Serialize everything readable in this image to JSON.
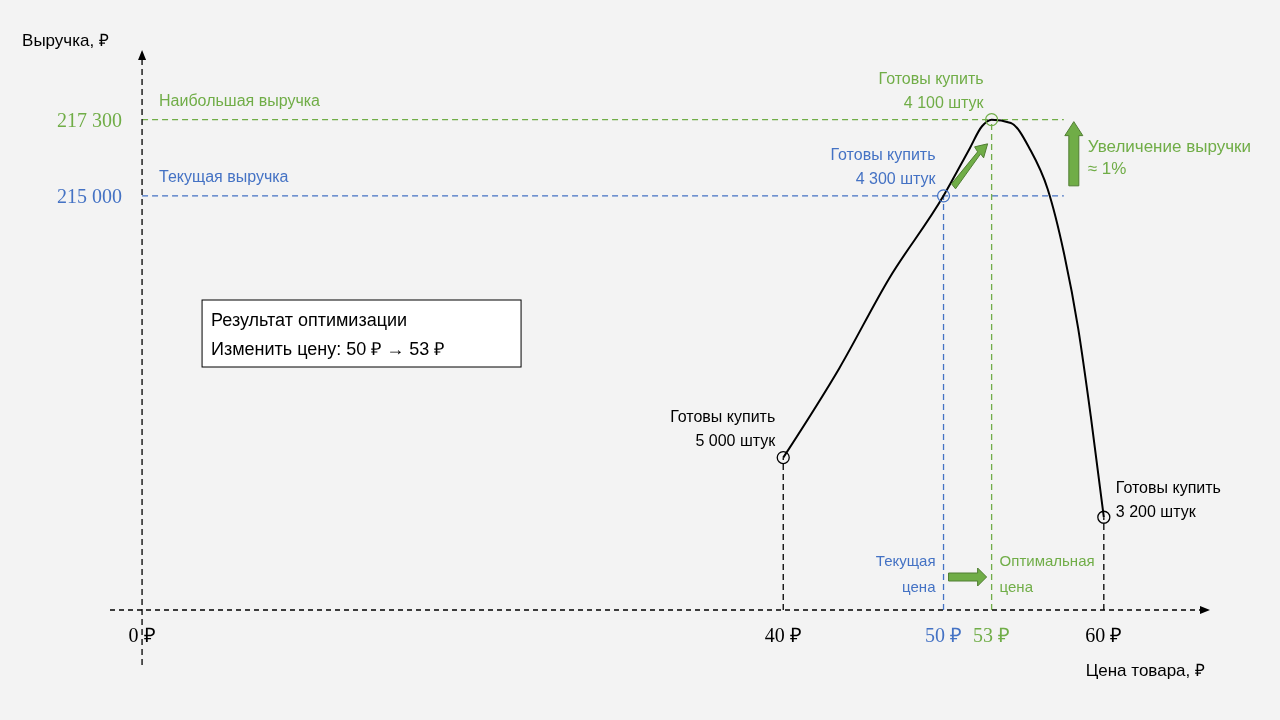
{
  "chart_data": {
    "type": "line",
    "xlabel": "Цена товара, ₽",
    "ylabel": "Выручка, ₽",
    "xlim": [
      -2,
      66
    ],
    "ylim": [
      202500,
      219100
    ],
    "xticks": [
      {
        "value": 0,
        "label": "0 ₽"
      },
      {
        "value": 40,
        "label": "40 ₽"
      },
      {
        "value": 50,
        "label": "50 ₽"
      },
      {
        "value": 53,
        "label": "53 ₽"
      },
      {
        "value": 60,
        "label": "60 ₽"
      }
    ],
    "yticks": [
      {
        "value": 215000,
        "label": "215 000"
      },
      {
        "value": 217300,
        "label": "217 300"
      }
    ],
    "grid": false,
    "legend": false,
    "series": [
      {
        "color": "#000000",
        "marker": "none",
        "line_style": "solid",
        "x": [
          40,
          43.5,
          46.6,
          50,
          51.6,
          52.4,
          53,
          54.2,
          55.4,
          56.5,
          57.5,
          58.4,
          59.2,
          60
        ],
        "values": [
          207100,
          209800,
          212500,
          215000,
          216400,
          217100,
          217300,
          217200,
          216400,
          215200,
          213300,
          211000,
          208300,
          205300
        ]
      },
      {
        "type": "scatter",
        "marker": "circle",
        "colors": [
          "#000000",
          "#4472c4",
          "#70ad47",
          "#000000"
        ],
        "x": [
          40,
          50,
          53,
          60
        ],
        "values": [
          207100,
          215000,
          217300,
          205300
        ]
      }
    ],
    "ref_lines": [
      {
        "axis": "y",
        "value": 217300,
        "label": "Наибольшая выручка",
        "color": "#70ad47",
        "line_style": "dashed"
      },
      {
        "axis": "y",
        "value": 215000,
        "label": "Текущая выручка",
        "color": "#4472c4",
        "line_style": "dashed"
      },
      {
        "axis": "x",
        "value": 50,
        "label": "Текущая\nцена",
        "color": "#4472c4",
        "line_style": "dashed"
      },
      {
        "axis": "x",
        "value": 53,
        "label": "Оптимальная\nцена",
        "color": "#70ad47",
        "line_style": "dashed"
      },
      {
        "axis": "x",
        "value": 0,
        "color": "#000000",
        "line_style": "dashed"
      },
      {
        "axis": "x",
        "value": 40,
        "color": "#000000",
        "line_style": "dashed"
      },
      {
        "axis": "x",
        "value": 60,
        "color": "#000000",
        "line_style": "dashed"
      }
    ],
    "annotations": [
      {
        "text": "Готовы купить\n5 000 штук",
        "x": 40,
        "y": 207100
      },
      {
        "text": "Готовы купить\n4 300 штук",
        "x": 50,
        "y": 215000
      },
      {
        "text": "Готовы купить\n4 100 штук",
        "x": 53,
        "y": 217300
      },
      {
        "text": "Готовы купить\n3 200 штук",
        "x": 60,
        "y": 205300
      },
      "Увеличение выручки ≈ 1%",
      "Результат оптимизации",
      "Изменить цену: 50 ₽ → 53 ₽"
    ]
  }
}
